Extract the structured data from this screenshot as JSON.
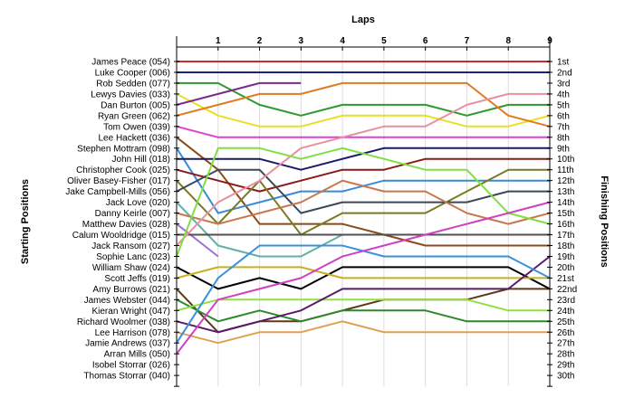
{
  "chart_data": {
    "type": "line",
    "title": "",
    "top_axis_label": "Laps",
    "left_axis_label": "Starting Positions",
    "right_axis_label": "Finishing Positions",
    "x": [
      0,
      1,
      2,
      3,
      4,
      5,
      6,
      7,
      8,
      9
    ],
    "lap_ticks": [
      "1",
      "2",
      "3",
      "4",
      "5",
      "6",
      "7",
      "8",
      "9"
    ],
    "finish_labels": [
      "1st",
      "2nd",
      "3rd",
      "4th",
      "5th",
      "6th",
      "7th",
      "8th",
      "9th",
      "10th",
      "11th",
      "12th",
      "13th",
      "14th",
      "15th",
      "16th",
      "17th",
      "18th",
      "19th",
      "20th",
      "21st",
      "22nd",
      "23rd",
      "24th",
      "25th",
      "26th",
      "27th",
      "28th",
      "29th",
      "30th"
    ],
    "ylim": [
      1,
      30
    ],
    "grid": true,
    "series": [
      {
        "name": "James Peace (054)",
        "color": "#cc2b2b",
        "values": [
          1,
          1,
          1,
          1,
          1,
          1,
          1,
          1,
          1,
          1
        ]
      },
      {
        "name": "Luke Cooper (006)",
        "color": "#1a1f8a",
        "values": [
          2,
          2,
          2,
          2,
          2,
          2,
          2,
          2,
          2,
          2
        ]
      },
      {
        "name": "Rob Sedden (077)",
        "color": "#2e9a2e",
        "values": [
          3,
          3,
          5,
          6,
          5,
          5,
          5,
          6,
          5,
          5
        ]
      },
      {
        "name": "Lewys Davies (033)",
        "color": "#e8e020",
        "values": [
          4,
          6,
          7,
          7,
          6,
          6,
          6,
          7,
          7,
          6
        ]
      },
      {
        "name": "Dan Burton (005)",
        "color": "#7a2a8f",
        "values": [
          5,
          4,
          3,
          3,
          null,
          null,
          null,
          null,
          null,
          null
        ]
      },
      {
        "name": "Ryan Green (062)",
        "color": "#e07b20",
        "values": [
          6,
          5,
          4,
          4,
          3,
          3,
          3,
          3,
          6,
          7
        ]
      },
      {
        "name": "Tom Owen (039)",
        "color": "#e040d0",
        "values": [
          7,
          8,
          8,
          8,
          8,
          8,
          8,
          8,
          8,
          8
        ]
      },
      {
        "name": "Lee Hackett (036)",
        "color": "#8a4a1a",
        "values": [
          8,
          11,
          16,
          16,
          16,
          17,
          18,
          18,
          18,
          18
        ]
      },
      {
        "name": "Stephen Mottram (098)",
        "color": "#3a8ad8",
        "values": [
          9,
          15,
          14,
          13,
          13,
          12,
          12,
          12,
          12,
          12
        ]
      },
      {
        "name": "John Hill (018)",
        "color": "#1a1a6a",
        "values": [
          10,
          10,
          10,
          11,
          10,
          9,
          9,
          9,
          9,
          9
        ]
      },
      {
        "name": "Christopher Cook (025)",
        "color": "#8a1a1a",
        "values": [
          11,
          12,
          13,
          12,
          11,
          11,
          10,
          10,
          10,
          10
        ]
      },
      {
        "name": "Oliver Basey-Fisher (017)",
        "color": "#7a7a20",
        "values": [
          12,
          16,
          12,
          17,
          15,
          15,
          15,
          13,
          11,
          11
        ]
      },
      {
        "name": "Jake Campbell-Mills (056)",
        "color": "#3a4a5a",
        "values": [
          13,
          11,
          11,
          15,
          14,
          14,
          14,
          14,
          13,
          13
        ]
      },
      {
        "name": "Jack Love (020)",
        "color": "#60b0a8",
        "values": [
          14,
          18,
          19,
          19,
          17,
          17,
          17,
          17,
          17,
          17
        ]
      },
      {
        "name": "Danny Keirle (007)",
        "color": "#c87850",
        "values": [
          15,
          16,
          15,
          14,
          12,
          13,
          13,
          15,
          16,
          15
        ]
      },
      {
        "name": "Matthew Davies (028)",
        "color": "#a070d8",
        "values": [
          16,
          19,
          null,
          null,
          null,
          null,
          null,
          null,
          null,
          null
        ]
      },
      {
        "name": "Calum Wooldridge (015)",
        "color": "#505050",
        "values": [
          17,
          17,
          17,
          17,
          17,
          17,
          17,
          17,
          17,
          17
        ]
      },
      {
        "name": "Jack Ransom (027)",
        "color": "#e890a0",
        "values": [
          18,
          14,
          12,
          9,
          8,
          7,
          7,
          5,
          4,
          4
        ]
      },
      {
        "name": "Sophie Lanc (023)",
        "color": "#80e040",
        "values": [
          19,
          9,
          9,
          10,
          9,
          10,
          11,
          11,
          15,
          16
        ]
      },
      {
        "name": "William Shaw (024)",
        "color": "#000000",
        "values": [
          20,
          22,
          21,
          22,
          20,
          20,
          20,
          20,
          20,
          22
        ]
      },
      {
        "name": "Scott Jeffs (019)",
        "color": "#c8b020",
        "values": [
          21,
          20,
          20,
          20,
          21,
          21,
          21,
          21,
          21,
          21
        ]
      },
      {
        "name": "Amy Burrows (021)",
        "color": "#5a3a1a",
        "values": [
          22,
          26,
          25,
          25,
          24,
          23,
          23,
          23,
          22,
          22
        ]
      },
      {
        "name": "James Webster (044)",
        "color": "#2a8a2a",
        "values": [
          23,
          25,
          24,
          25,
          24,
          24,
          24,
          25,
          25,
          25
        ]
      },
      {
        "name": "Kieran Wright (047)",
        "color": "#90e040",
        "values": [
          24,
          23,
          23,
          23,
          23,
          23,
          23,
          23,
          24,
          24
        ]
      },
      {
        "name": "Richard Woolmer (038)",
        "color": "#5a1a6a",
        "values": [
          25,
          26,
          25,
          24,
          22,
          22,
          22,
          22,
          22,
          19
        ]
      },
      {
        "name": "Lee Harrison (078)",
        "color": "#e0a050",
        "values": [
          26,
          27,
          26,
          26,
          25,
          26,
          26,
          26,
          26,
          26
        ]
      },
      {
        "name": "Jamie Andrews (037)",
        "color": "#3a90e0",
        "values": [
          27,
          21,
          18,
          18,
          18,
          19,
          19,
          19,
          19,
          21
        ]
      },
      {
        "name": "Arran Mills (050)",
        "color": "#d040c0",
        "values": [
          28,
          23,
          22,
          21,
          19,
          18,
          17,
          16,
          15,
          14
        ]
      },
      {
        "name": "Isobel Storrar (026)",
        "color": null,
        "values": [
          29,
          null,
          null,
          null,
          null,
          null,
          null,
          null,
          null,
          null
        ]
      },
      {
        "name": "Thomas Storrar (040)",
        "color": null,
        "values": [
          30,
          null,
          null,
          null,
          null,
          null,
          null,
          null,
          null,
          null
        ]
      }
    ]
  }
}
